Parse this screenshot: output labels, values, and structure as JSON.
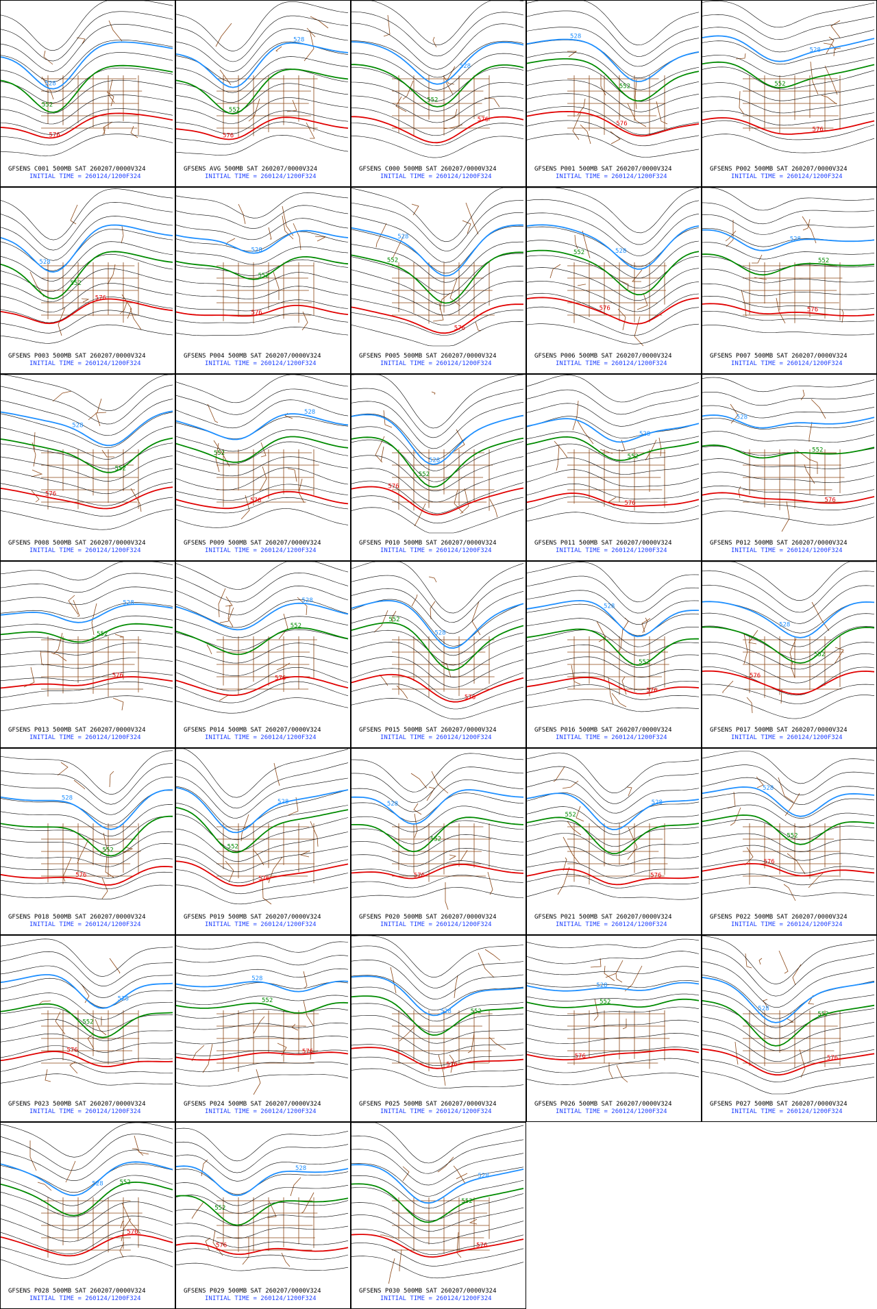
{
  "panels": [
    {
      "title": "GFSENS C001 500MB SAT 260207/0000V324",
      "initial_time": "INITIAL TIME = 260124/1200F324"
    },
    {
      "title": "GFSENS AVG 500MB SAT 260207/0000V324",
      "initial_time": "INITIAL TIME = 260124/1200F324"
    },
    {
      "title": "GFSENS C000 500MB SAT 260207/0000V324",
      "initial_time": "INITIAL TIME = 260124/1200F324"
    },
    {
      "title": "GFSENS P001 500MB SAT 260207/0000V324",
      "initial_time": "INITIAL TIME = 260124/1200F324"
    },
    {
      "title": "GFSENS P002 500MB SAT 260207/0000V324",
      "initial_time": "INITIAL TIME = 260124/1200F324"
    },
    {
      "title": "GFSENS P003 500MB SAT 260207/0000V324",
      "initial_time": "INITIAL TIME = 260124/1200F324"
    },
    {
      "title": "GFSENS P004 500MB SAT 260207/0000V324",
      "initial_time": "INITIAL TIME = 260124/1200F324"
    },
    {
      "title": "GFSENS P005 500MB SAT 260207/0000V324",
      "initial_time": "INITIAL TIME = 260124/1200F324"
    },
    {
      "title": "GFSENS P006 500MB SAT 260207/0000V324",
      "initial_time": "INITIAL TIME = 260124/1200F324"
    },
    {
      "title": "GFSENS P007 500MB SAT 260207/0000V324",
      "initial_time": "INITIAL TIME = 260124/1200F324"
    },
    {
      "title": "GFSENS P008 500MB SAT 260207/0000V324",
      "initial_time": "INITIAL TIME = 260124/1200F324"
    },
    {
      "title": "GFSENS P009 500MB SAT 260207/0000V324",
      "initial_time": "INITIAL TIME = 260124/1200F324"
    },
    {
      "title": "GFSENS P010 500MB SAT 260207/0000V324",
      "initial_time": "INITIAL TIME = 260124/1200F324"
    },
    {
      "title": "GFSENS P011 500MB SAT 260207/0000V324",
      "initial_time": "INITIAL TIME = 260124/1200F324"
    },
    {
      "title": "GFSENS P012 500MB SAT 260207/0000V324",
      "initial_time": "INITIAL TIME = 260124/1200F324"
    },
    {
      "title": "GFSENS P013 500MB SAT 260207/0000V324",
      "initial_time": "INITIAL TIME = 260124/1200F324"
    },
    {
      "title": "GFSENS P014 500MB SAT 260207/0000V324",
      "initial_time": "INITIAL TIME = 260124/1200F324"
    },
    {
      "title": "GFSENS P015 500MB SAT 260207/0000V324",
      "initial_time": "INITIAL TIME = 260124/1200F324"
    },
    {
      "title": "GFSENS P016 500MB SAT 260207/0000V324",
      "initial_time": "INITIAL TIME = 260124/1200F324"
    },
    {
      "title": "GFSENS P017 500MB SAT 260207/0000V324",
      "initial_time": "INITIAL TIME = 260124/1200F324"
    },
    {
      "title": "GFSENS P018 500MB SAT 260207/0000V324",
      "initial_time": "INITIAL TIME = 260124/1200F324"
    },
    {
      "title": "GFSENS P019 500MB SAT 260207/0000V324",
      "initial_time": "INITIAL TIME = 260124/1200F324"
    },
    {
      "title": "GFSENS P020 500MB SAT 260207/0000V324",
      "initial_time": "INITIAL TIME = 260124/1200F324"
    },
    {
      "title": "GFSENS P021 500MB SAT 260207/0000V324",
      "initial_time": "INITIAL TIME = 260124/1200F324"
    },
    {
      "title": "GFSENS P022 500MB SAT 260207/0000V324",
      "initial_time": "INITIAL TIME = 260124/1200F324"
    },
    {
      "title": "GFSENS P023 500MB SAT 260207/0000V324",
      "initial_time": "INITIAL TIME = 260124/1200F324"
    },
    {
      "title": "GFSENS P024 500MB SAT 260207/0000V324",
      "initial_time": "INITIAL TIME = 260124/1200F324"
    },
    {
      "title": "GFSENS P025 500MB SAT 260207/0000V324",
      "initial_time": "INITIAL TIME = 260124/1200F324"
    },
    {
      "title": "GFSENS P026 500MB SAT 260207/0000V324",
      "initial_time": "INITIAL TIME = 260124/1200F324"
    },
    {
      "title": "GFSENS P027 500MB SAT 260207/0000V324",
      "initial_time": "INITIAL TIME = 260124/1200F324"
    },
    {
      "title": "GFSENS P028 500MB SAT 260207/0000V324",
      "initial_time": "INITIAL TIME = 260124/1200F324"
    },
    {
      "title": "GFSENS P029 500MB SAT 260207/0000V324",
      "initial_time": "INITIAL TIME = 260124/1200F324"
    },
    {
      "title": "GFSENS P030 500MB SAT 260207/0000V324",
      "initial_time": "INITIAL TIME = 260124/1200F324"
    }
  ],
  "contours": [
    {
      "level": 528,
      "color": "#1e8fff"
    },
    {
      "level": 552,
      "color": "#008a00"
    },
    {
      "level": 576,
      "color": "#e00000"
    }
  ]
}
